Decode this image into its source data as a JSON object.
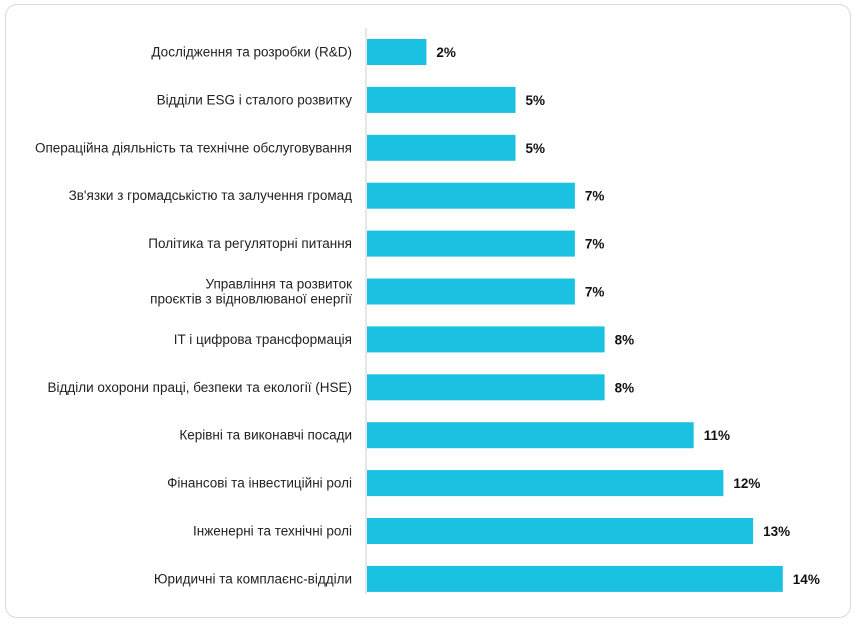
{
  "chart_data": {
    "type": "bar",
    "orientation": "horizontal",
    "categories": [
      "Дослідження та розробки (R&D)",
      "Відділи ESG і сталого розвитку",
      "Операційна діяльність та технічне обслуговування",
      "Зв'язки з громадськістю та залучення громад",
      "Політика та регуляторні питання",
      "Управління та розвиток\nпроєктів з відновлюваної енергії",
      "IT і цифрова трансформація",
      "Відділи охорони праці, безпеки та екології (HSE)",
      "Керівні та виконавчі посади",
      "Фінансові та інвестиційні ролі",
      "Інженерні та технічні ролі",
      "Юридичні та комплаєнс-відділи"
    ],
    "values": [
      2,
      5,
      5,
      7,
      7,
      7,
      8,
      8,
      11,
      12,
      13,
      14
    ],
    "value_labels": [
      "2%",
      "5%",
      "5%",
      "7%",
      "7%",
      "7%",
      "8%",
      "8%",
      "11%",
      "12%",
      "13%",
      "14%"
    ],
    "unit": "%",
    "bar_color": "#1bc1e0",
    "grid": false,
    "title": "",
    "xlabel": "",
    "ylabel": ""
  }
}
